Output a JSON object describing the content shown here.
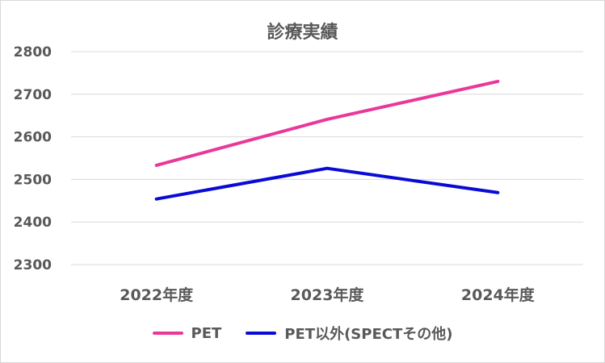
{
  "chart_data": {
    "type": "line",
    "title": "診療実績",
    "categories": [
      "2022年度",
      "2023年度",
      "2024年度"
    ],
    "series": [
      {
        "name": "PET",
        "color": "#e8399b",
        "values": [
          2533,
          2641,
          2730
        ]
      },
      {
        "name": "PET以外(SPECTその他)",
        "color": "#0a0ad6",
        "values": [
          2454,
          2526,
          2469
        ]
      }
    ],
    "yticks": [
      2300,
      2400,
      2500,
      2600,
      2700,
      2800
    ],
    "ylim": [
      2300,
      2800
    ],
    "grid": true,
    "legend_position": "bottom"
  }
}
